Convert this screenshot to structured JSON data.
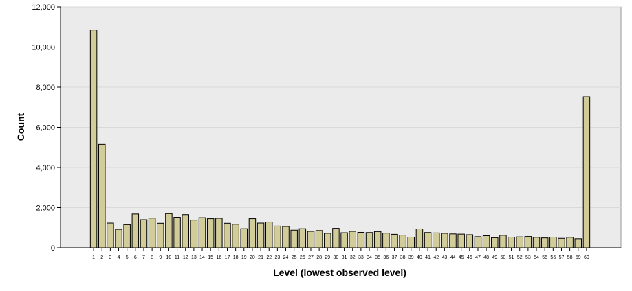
{
  "colors": {
    "plot_background": "#ebebeb",
    "gridline": "#d9d9d9",
    "bar_fill": "#d2cc98",
    "bar_stroke": "#000000",
    "axis": "#000000"
  },
  "chart_data": {
    "type": "bar",
    "title": "",
    "xlabel": "Level (lowest observed level)",
    "ylabel": "Count",
    "ylim": [
      0,
      12000
    ],
    "yticks": [
      0,
      2000,
      4000,
      6000,
      8000,
      10000,
      12000
    ],
    "ytick_labels": [
      "0",
      "2,000",
      "4,000",
      "6,000",
      "8,000",
      "10,000",
      "12,000"
    ],
    "grid": true,
    "legend": "none",
    "categories": [
      "1",
      "2",
      "3",
      "4",
      "5",
      "6",
      "7",
      "8",
      "9",
      "10",
      "11",
      "12",
      "13",
      "14",
      "15",
      "16",
      "17",
      "18",
      "19",
      "20",
      "21",
      "22",
      "23",
      "24",
      "25",
      "26",
      "27",
      "28",
      "29",
      "30",
      "31",
      "32",
      "33",
      "34",
      "35",
      "36",
      "37",
      "38",
      "39",
      "40",
      "41",
      "42",
      "43",
      "44",
      "45",
      "46",
      "47",
      "48",
      "49",
      "50",
      "51",
      "52",
      "53",
      "54",
      "55",
      "56",
      "57",
      "58",
      "59",
      "60"
    ],
    "values": [
      10850,
      5150,
      1230,
      920,
      1150,
      1680,
      1400,
      1480,
      1220,
      1700,
      1520,
      1650,
      1380,
      1500,
      1450,
      1470,
      1220,
      1170,
      950,
      1450,
      1230,
      1280,
      1080,
      1060,
      880,
      950,
      820,
      860,
      720,
      970,
      750,
      820,
      770,
      760,
      810,
      730,
      670,
      630,
      530,
      940,
      760,
      740,
      720,
      690,
      680,
      650,
      550,
      600,
      500,
      620,
      530,
      540,
      560,
      520,
      490,
      530,
      470,
      520,
      450,
      7520
    ]
  }
}
